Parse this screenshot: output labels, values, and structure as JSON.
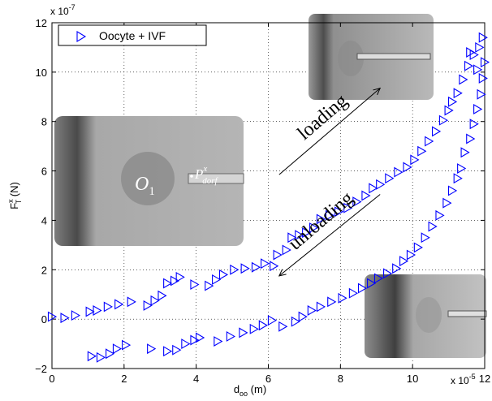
{
  "chart_data": {
    "type": "scatter",
    "xlabel_main": "d",
    "xlabel_sub": "oo",
    "xlabel_unit": " (m)",
    "ylabel_main": "F",
    "ylabel_sup": "x",
    "ylabel_sub": "T",
    "ylabel_unit": " (N)",
    "x_exponent": "x 10",
    "x_exponent_power": "-5",
    "y_exponent": "x 10",
    "y_exponent_power": "-7",
    "xlim": [
      0,
      12
    ],
    "ylim": [
      -2,
      12
    ],
    "x_ticks": [
      "0",
      "2",
      "4",
      "6",
      "8",
      "10",
      "12"
    ],
    "y_ticks": [
      "−2",
      "0",
      "2",
      "4",
      "6",
      "8",
      "10",
      "12"
    ],
    "grid": true,
    "legend_position": "top-left",
    "marker_color": "#0000ff",
    "series": [
      {
        "name": "Oocyte + IVF",
        "points": [
          [
            0.0,
            0.1
          ],
          [
            0.35,
            0.05
          ],
          [
            0.65,
            0.15
          ],
          [
            1.05,
            0.3
          ],
          [
            1.25,
            0.35
          ],
          [
            1.55,
            0.5
          ],
          [
            1.85,
            0.6
          ],
          [
            2.2,
            0.7
          ],
          [
            2.65,
            0.55
          ],
          [
            2.85,
            0.75
          ],
          [
            3.05,
            0.95
          ],
          [
            3.2,
            1.45
          ],
          [
            3.4,
            1.55
          ],
          [
            3.55,
            1.7
          ],
          [
            3.95,
            1.4
          ],
          [
            4.35,
            1.35
          ],
          [
            4.55,
            1.6
          ],
          [
            4.75,
            1.8
          ],
          [
            5.05,
            2.0
          ],
          [
            5.35,
            2.05
          ],
          [
            5.65,
            2.1
          ],
          [
            5.9,
            2.25
          ],
          [
            6.15,
            2.15
          ],
          [
            6.25,
            2.6
          ],
          [
            6.5,
            2.8
          ],
          [
            6.65,
            3.3
          ],
          [
            6.85,
            3.4
          ],
          [
            7.05,
            3.5
          ],
          [
            7.25,
            3.7
          ],
          [
            7.45,
            4.05
          ],
          [
            7.7,
            4.2
          ],
          [
            7.95,
            4.35
          ],
          [
            8.2,
            4.5
          ],
          [
            8.45,
            4.75
          ],
          [
            8.7,
            5.0
          ],
          [
            8.9,
            5.3
          ],
          [
            9.1,
            5.45
          ],
          [
            9.35,
            5.7
          ],
          [
            9.6,
            5.95
          ],
          [
            9.85,
            6.15
          ],
          [
            10.05,
            6.45
          ],
          [
            10.25,
            6.8
          ],
          [
            10.45,
            7.2
          ],
          [
            10.65,
            7.6
          ],
          [
            10.85,
            8.05
          ],
          [
            11.0,
            8.45
          ],
          [
            11.1,
            8.8
          ],
          [
            11.25,
            9.15
          ],
          [
            11.4,
            9.7
          ],
          [
            11.55,
            10.25
          ],
          [
            11.7,
            10.7
          ],
          [
            11.85,
            11.0
          ],
          [
            11.95,
            11.4
          ],
          [
            1.1,
            -1.5
          ],
          [
            1.35,
            -1.55
          ],
          [
            1.6,
            -1.4
          ],
          [
            1.8,
            -1.2
          ],
          [
            2.05,
            -1.05
          ],
          [
            2.75,
            -1.2
          ],
          [
            3.2,
            -1.3
          ],
          [
            3.45,
            -1.25
          ],
          [
            3.7,
            -1.0
          ],
          [
            3.95,
            -0.85
          ],
          [
            4.1,
            -0.75
          ],
          [
            4.6,
            -0.9
          ],
          [
            4.95,
            -0.7
          ],
          [
            5.3,
            -0.55
          ],
          [
            5.6,
            -0.4
          ],
          [
            5.85,
            -0.25
          ],
          [
            6.1,
            -0.05
          ],
          [
            6.4,
            -0.3
          ],
          [
            6.75,
            -0.1
          ],
          [
            6.95,
            0.1
          ],
          [
            7.2,
            0.35
          ],
          [
            7.45,
            0.5
          ],
          [
            7.75,
            0.7
          ],
          [
            8.05,
            0.85
          ],
          [
            8.35,
            1.05
          ],
          [
            8.6,
            1.25
          ],
          [
            8.85,
            1.45
          ],
          [
            9.05,
            1.65
          ],
          [
            9.3,
            1.85
          ],
          [
            9.55,
            2.05
          ],
          [
            9.75,
            2.35
          ],
          [
            9.95,
            2.6
          ],
          [
            10.15,
            2.9
          ],
          [
            10.35,
            3.3
          ],
          [
            10.55,
            3.75
          ],
          [
            10.75,
            4.2
          ],
          [
            10.95,
            4.7
          ],
          [
            11.1,
            5.2
          ],
          [
            11.25,
            5.7
          ],
          [
            11.35,
            6.1
          ],
          [
            11.45,
            6.75
          ],
          [
            11.6,
            7.3
          ],
          [
            11.7,
            7.9
          ],
          [
            11.8,
            8.5
          ],
          [
            11.9,
            9.1
          ],
          [
            11.95,
            9.75
          ],
          [
            12.0,
            10.4
          ],
          [
            11.8,
            10.1
          ],
          [
            11.6,
            10.8
          ]
        ]
      }
    ],
    "annotations": [
      {
        "text": "loading",
        "arrow_from": [
          6.3,
          5.85
        ],
        "arrow_to": [
          9.1,
          9.35
        ]
      },
      {
        "text": "unloading",
        "arrow_from": [
          9.1,
          5.05
        ],
        "arrow_to": [
          6.3,
          1.75
        ]
      }
    ],
    "inset_labels": {
      "o_main": "O",
      "o_sub": "1",
      "p_main": "P",
      "p_sup": "x",
      "p_sub": "dorf"
    }
  }
}
